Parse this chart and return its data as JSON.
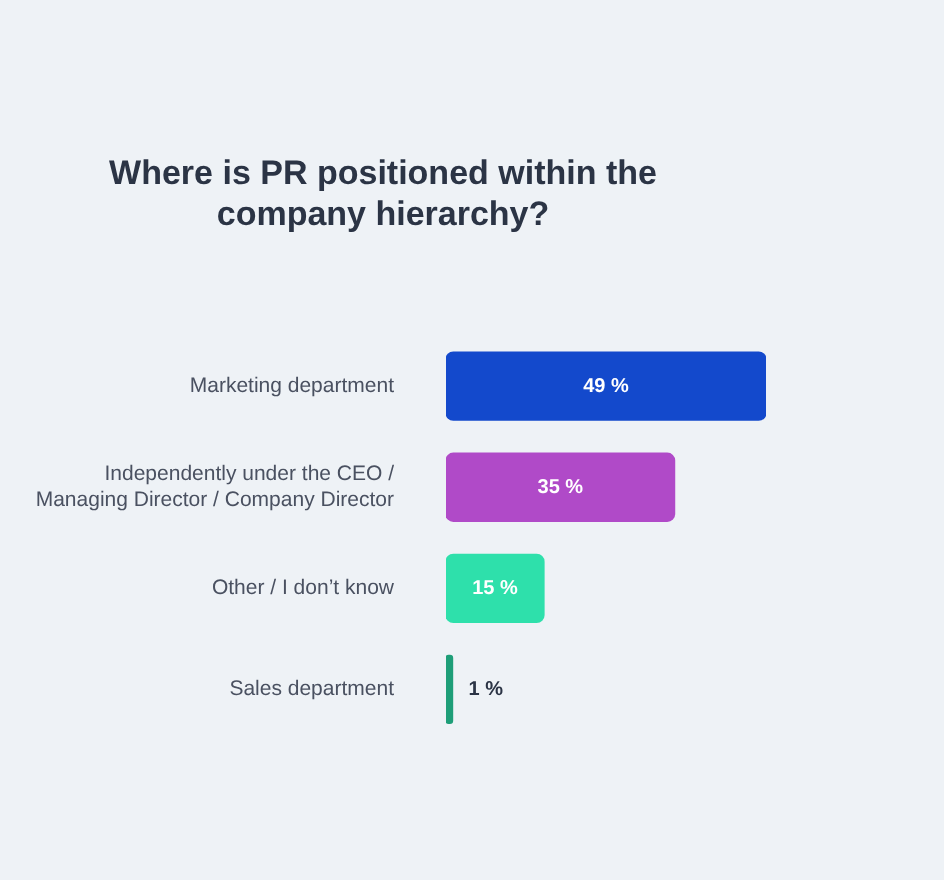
{
  "chart_data": {
    "type": "bar",
    "orientation": "horizontal",
    "title": "Where is PR positioned within the company hierarchy?",
    "categories": [
      "Marketing department",
      "Independently under the CEO / Managing Director / Company Director",
      "Other / I don’t know",
      "Sales department"
    ],
    "values": [
      49,
      35,
      15,
      1
    ],
    "colors": [
      "#1349cc",
      "#b04ac8",
      "#2ee0ab",
      "#1e9e78"
    ],
    "value_labels": [
      "49 %",
      "35 %",
      "15 %",
      "1 %"
    ],
    "grid": false,
    "legend": false
  }
}
